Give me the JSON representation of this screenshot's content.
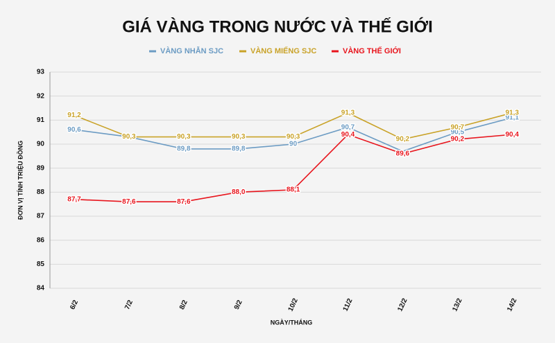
{
  "chart_data": {
    "type": "line",
    "title": "GIÁ VÀNG TRONG NƯỚC VÀ THẾ GIỚI",
    "x_label": "NGÀY/THÁNG",
    "y_label": "ĐƠN VỊ TÍNH TRIỆU ĐỒNG",
    "categories": [
      "6/2",
      "7/2",
      "8/2",
      "9/2",
      "10/2",
      "11/2",
      "12/2",
      "13/2",
      "14/2"
    ],
    "series": [
      {
        "name": "VÀNG NHẪN SJC",
        "color": "#6b9bc3",
        "values": [
          90.6,
          90.3,
          89.8,
          89.8,
          90,
          90.7,
          89.7,
          90.5,
          91.1
        ],
        "value_labels": [
          "90,6",
          null,
          "89,8",
          "89,8",
          "90",
          "90,7",
          null,
          "90,5",
          "91,1"
        ]
      },
      {
        "name": "VÀNG MIẾNG SJC",
        "color": "#c9a227",
        "values": [
          91.2,
          90.3,
          90.3,
          90.3,
          90.3,
          91.3,
          90.2,
          90.7,
          91.3
        ],
        "value_labels": [
          "91,2",
          "90,3",
          "90,3",
          "90,3",
          "90,3",
          "91,3",
          "90,2",
          "90,7",
          "91,3"
        ]
      },
      {
        "name": "VÀNG THẾ GIỚI",
        "color": "#e8141c",
        "values": [
          87.7,
          87.6,
          87.6,
          88.0,
          88.1,
          90.4,
          89.6,
          90.2,
          90.4
        ],
        "value_labels": [
          "87,7",
          "87,6",
          "87,6",
          "88,0",
          "88,1",
          "90,4",
          "89,6",
          "90,2",
          "90,4"
        ]
      }
    ],
    "ylim": [
      84,
      93
    ],
    "yticks": [
      84,
      85,
      86,
      87,
      88,
      89,
      90,
      91,
      92,
      93
    ],
    "grid": true
  }
}
